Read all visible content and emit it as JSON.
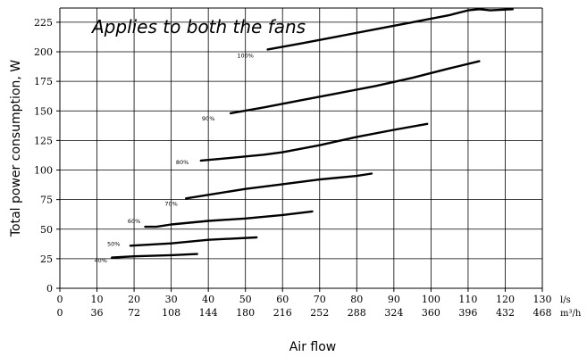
{
  "chart_data": {
    "type": "line",
    "title": "",
    "annotation": "Applies to both the fans",
    "xlabel": "Air flow",
    "ylabel": "Total power consumption, W",
    "x_unit_primary": "l/s",
    "x_unit_secondary": "m³/h",
    "xlim": [
      0,
      130
    ],
    "ylim": [
      0,
      237
    ],
    "x_ticks_primary": [
      0,
      10,
      20,
      30,
      40,
      50,
      60,
      70,
      80,
      90,
      100,
      110,
      120,
      130
    ],
    "x_tick_labels_primary": [
      "0",
      "10",
      "20",
      "30",
      "40",
      "50",
      "60",
      "70",
      "80",
      "90",
      "100",
      "110",
      "120",
      "130"
    ],
    "x_tick_labels_secondary": [
      "0",
      "36",
      "72",
      "108",
      "144",
      "180",
      "216",
      "252",
      "288",
      "324",
      "360",
      "396",
      "432",
      "468"
    ],
    "y_ticks": [
      0,
      25,
      50,
      75,
      100,
      125,
      150,
      175,
      200,
      225
    ],
    "y_tick_labels": [
      "0",
      "25",
      "50",
      "75",
      "100",
      "125",
      "150",
      "175",
      "200",
      "225"
    ],
    "grid": true,
    "legend": "none",
    "series": [
      {
        "label": "40%",
        "label_anchor": [
          11,
          22
        ],
        "x": [
          14,
          20,
          30,
          37
        ],
        "y": [
          26,
          27,
          28,
          29
        ]
      },
      {
        "label": "50%",
        "label_anchor": [
          14.5,
          36
        ],
        "x": [
          19,
          30,
          40,
          53
        ],
        "y": [
          36,
          38,
          41,
          43
        ]
      },
      {
        "label": "60%",
        "label_anchor": [
          20,
          55
        ],
        "x": [
          23,
          26,
          30,
          40,
          50,
          60,
          68
        ],
        "y": [
          52,
          52,
          54,
          57,
          59,
          62,
          65
        ]
      },
      {
        "label": "70%",
        "label_anchor": [
          30,
          70
        ],
        "x": [
          34,
          40,
          50,
          60,
          70,
          80,
          84
        ],
        "y": [
          76,
          79,
          84,
          88,
          92,
          95,
          97
        ]
      },
      {
        "label": "80%",
        "label_anchor": [
          33,
          105
        ],
        "x": [
          38,
          45,
          55,
          60,
          70,
          80,
          90,
          99
        ],
        "y": [
          108,
          110,
          113,
          115,
          121,
          128,
          134,
          139
        ]
      },
      {
        "label": "90%",
        "label_anchor": [
          40,
          142
        ],
        "x": [
          46,
          55,
          65,
          75,
          85,
          95,
          105,
          113
        ],
        "y": [
          148,
          153,
          159,
          165,
          171,
          178,
          186,
          192
        ]
      },
      {
        "label": "100%",
        "label_anchor": [
          50,
          195
        ],
        "x": [
          56,
          65,
          75,
          85,
          95,
          105,
          110,
          113,
          116,
          122
        ],
        "y": [
          202,
          207,
          213,
          219,
          225,
          231,
          235,
          236,
          235,
          236
        ]
      }
    ]
  }
}
